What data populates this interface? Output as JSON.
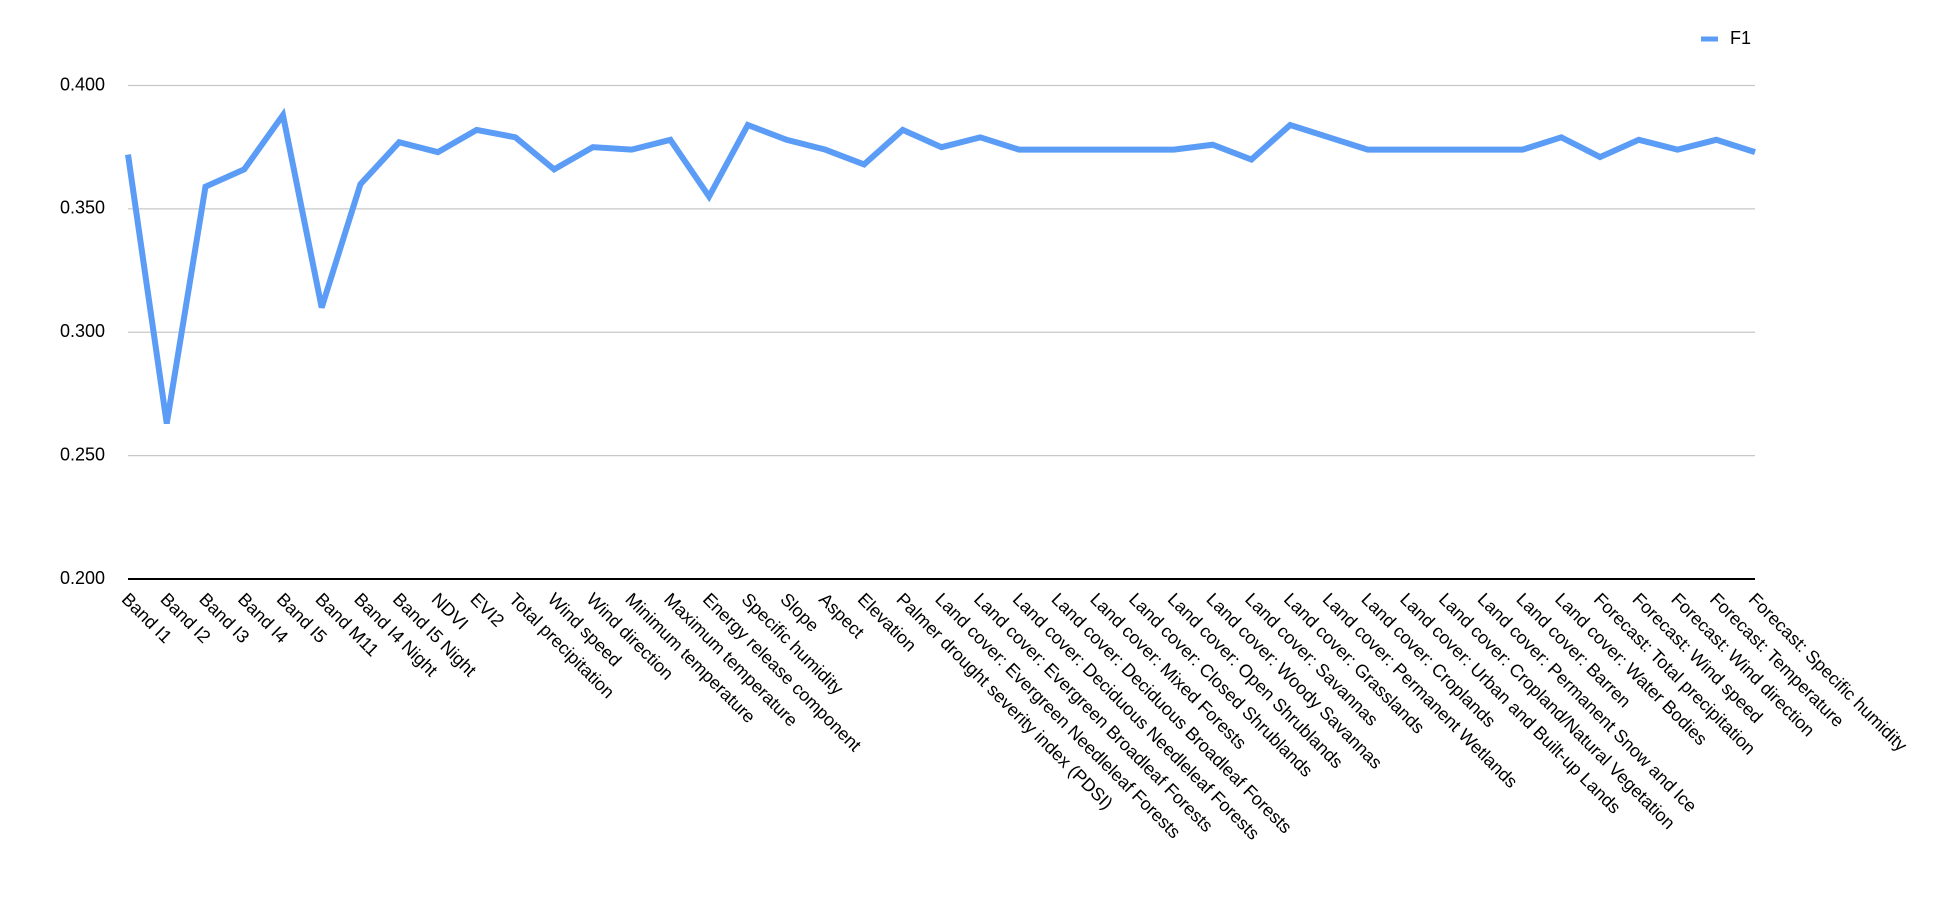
{
  "chart_data": {
    "type": "line",
    "categories": [
      "Band I1",
      "Band I2",
      "Band I3",
      "Band I4",
      "Band I5",
      "Band M11",
      "Band I4 Night",
      "Band I5 Night",
      "NDVI",
      "EVI2",
      "Total precipitation",
      "Wind speed",
      "Wind direction",
      "Minimum temperature",
      "Maximum temperature",
      "Energy release component",
      "Specific humidity",
      "Slope",
      "Aspect",
      "Elevation",
      "Palmer drought severity index (PDSI)",
      "Land cover: Evergreen Needleleaf Forests",
      "Land cover: Evergreen Broadleaf Forests",
      "Land cover: Deciduous Needleleaf Forests",
      "Land cover: Deciduous Broadleaf Forests",
      "Land cover: Mixed Forests",
      "Land cover: Closed Shrublands",
      "Land cover: Open Shrublands",
      "Land cover: Woody Savannas",
      "Land cover: Savannas",
      "Land cover: Grasslands",
      "Land cover: Permanent Wetlands",
      "Land cover: Croplands",
      "Land cover: Urban and Built-up Lands",
      "Land cover: Cropland/Natural Vegetation",
      "Land cover: Permanent Snow and Ice",
      "Land cover: Barren",
      "Land cover: Water Bodies",
      "Forecast: Total precipitation",
      "Forecast: Wind speed",
      "Forecast: Wind direction",
      "Forecast: Temperature",
      "Forecast: Specific humidity"
    ],
    "series": [
      {
        "name": "F1",
        "color": "#5b9cf6",
        "values": [
          0.372,
          0.263,
          0.359,
          0.366,
          0.388,
          0.31,
          0.36,
          0.377,
          0.373,
          0.382,
          0.379,
          0.366,
          0.375,
          0.374,
          0.378,
          0.355,
          0.384,
          0.378,
          0.374,
          0.368,
          0.382,
          0.375,
          0.379,
          0.374,
          0.374,
          0.374,
          0.374,
          0.374,
          0.376,
          0.37,
          0.384,
          0.379,
          0.374,
          0.374,
          0.374,
          0.374,
          0.374,
          0.379,
          0.371,
          0.378,
          0.374,
          0.378,
          0.373
        ]
      }
    ],
    "ylim": [
      0.2,
      0.4
    ],
    "yticks": [
      {
        "value": 0.2,
        "label": "0.200"
      },
      {
        "value": 0.25,
        "label": "0.250"
      },
      {
        "value": 0.3,
        "label": "0.300"
      },
      {
        "value": 0.35,
        "label": "0.350"
      },
      {
        "value": 0.4,
        "label": "0.400"
      }
    ],
    "grid": true,
    "legend": "top-right"
  }
}
